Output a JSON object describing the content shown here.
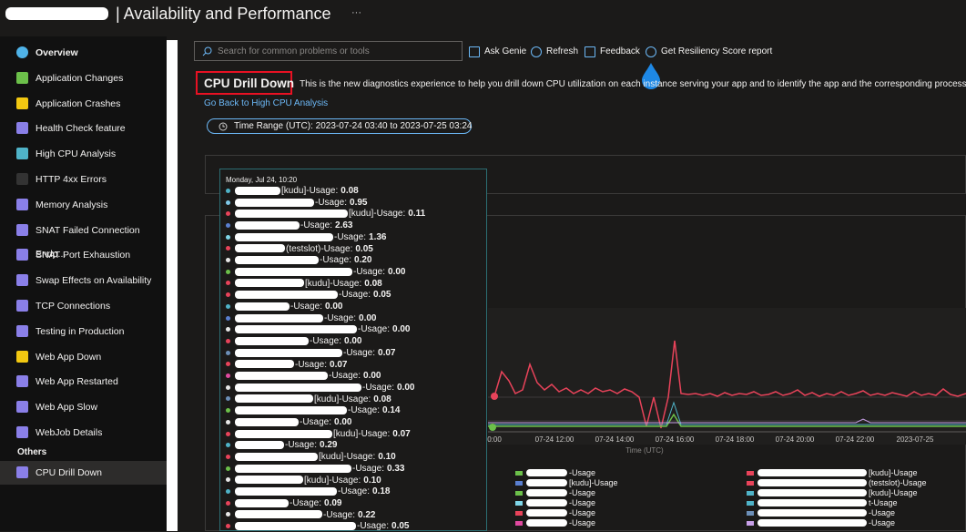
{
  "header": {
    "title": "| Availability and Performance",
    "more": "···"
  },
  "sidebar": {
    "items": [
      "Overview",
      "Application Changes",
      "Application Crashes",
      "Health Check feature",
      "High CPU Analysis",
      "HTTP 4xx Errors",
      "Memory Analysis",
      "SNAT Failed Connection Endp...",
      "SNAT Port Exhaustion",
      "Swap Effects on Availability",
      "TCP Connections",
      "Testing in Production",
      "Web App Down",
      "Web App Restarted",
      "Web App Slow",
      "WebJob Details"
    ],
    "section": "Others",
    "selected": "CPU Drill Down"
  },
  "toolbar": {
    "search_placeholder": "Search for common problems or tools",
    "buttons": [
      "Ask Genie",
      "Refresh",
      "Feedback",
      "Get Resiliency Score report"
    ]
  },
  "content": {
    "title": "CPU Drill Down",
    "description": "This is the new diagnostics experience to help you drill down CPU utilization on each instance serving your app and to identify the app and the corresponding process causi",
    "link": "Go Back to High CPU Analysis",
    "time_range": "Time Range (UTC): 2023-07-24 03:40 to 2023-07-25 03:24"
  },
  "tooltip": {
    "header": "Monday, Jul 24, 10:20",
    "entries": [
      {
        "label": "[kudu]-Usage:",
        "value": "0.08",
        "color": "#4fb3c8"
      },
      {
        "label": "-Usage:",
        "value": "0.95",
        "color": "#7fc8e8"
      },
      {
        "label": "[kudu]-Usage:",
        "value": "0.11",
        "color": "#e8435a"
      },
      {
        "label": "-Usage:",
        "value": "2.63",
        "color": "#5a7fd0"
      },
      {
        "label": "-Usage:",
        "value": "1.36",
        "color": "#7fd6e8"
      },
      {
        "label": "(testslot)-Usage:",
        "value": "0.05",
        "color": "#e8435a"
      },
      {
        "label": "-Usage:",
        "value": "0.20",
        "color": "#e8e8e8"
      },
      {
        "label": "-Usage:",
        "value": "0.00",
        "color": "#6cc04a"
      },
      {
        "label": "[kudu]-Usage:",
        "value": "0.08",
        "color": "#e8435a"
      },
      {
        "label": "-Usage:",
        "value": "0.05",
        "color": "#e8435a"
      },
      {
        "label": "-Usage:",
        "value": "0.00",
        "color": "#4fb3c8"
      },
      {
        "label": "-Usage:",
        "value": "0.00",
        "color": "#5a7fd0"
      },
      {
        "label": "-Usage:",
        "value": "0.00",
        "color": "#e8e8e8"
      },
      {
        "label": "-Usage:",
        "value": "0.00",
        "color": "#e8435a"
      },
      {
        "label": "-Usage:",
        "value": "0.07",
        "color": "#6c8fb8"
      },
      {
        "label": "-Usage:",
        "value": "0.07",
        "color": "#e8435a"
      },
      {
        "label": "-Usage:",
        "value": "0.00",
        "color": "#e04aa0"
      },
      {
        "label": "-Usage:",
        "value": "0.00",
        "color": "#e8e8e8"
      },
      {
        "label": "[kudu]-Usage:",
        "value": "0.08",
        "color": "#6c8fb8"
      },
      {
        "label": "-Usage:",
        "value": "0.14",
        "color": "#6cc04a"
      },
      {
        "label": "-Usage:",
        "value": "0.00",
        "color": "#e8e8e8"
      },
      {
        "label": "[kudu]-Usage:",
        "value": "0.07",
        "color": "#e8435a"
      },
      {
        "label": "-Usage:",
        "value": "0.29",
        "color": "#4fb3c8"
      },
      {
        "label": "[kudu]-Usage:",
        "value": "0.10",
        "color": "#e8435a"
      },
      {
        "label": "-Usage:",
        "value": "0.33",
        "color": "#6cc04a"
      },
      {
        "label": "[kudu]-Usage:",
        "value": "0.10",
        "color": "#e8e8e8"
      },
      {
        "label": "-Usage:",
        "value": "0.18",
        "color": "#4fb3c8"
      },
      {
        "label": "-Usage:",
        "value": "0.09",
        "color": "#e8435a"
      },
      {
        "label": "-Usage:",
        "value": "0.22",
        "color": "#e8e8e8"
      },
      {
        "label": "-Usage:",
        "value": "0.05",
        "color": "#e8435a"
      }
    ]
  },
  "chart": {
    "x_labels": [
      "0:00",
      "07-24 12:00",
      "07-24 14:00",
      "07-24 16:00",
      "07-24 18:00",
      "07-24 20:00",
      "07-24 22:00",
      "2023-07-25"
    ],
    "x_axis_label": "Time (UTC)",
    "legend": [
      {
        "label": "-Usage",
        "color": "#6cc04a"
      },
      {
        "label": "[kudu]-Usage",
        "color": "#e8435a"
      },
      {
        "label": "[kudu]-Usage",
        "color": "#5a7fd0"
      },
      {
        "label": "(testslot)-Usage",
        "color": "#e8435a"
      },
      {
        "label": "-Usage",
        "color": "#6cc04a"
      },
      {
        "label": "[kudu]-Usage",
        "color": "#4fb3c8"
      },
      {
        "label": "-Usage",
        "color": "#7fd6e8"
      },
      {
        "label": "t-Usage",
        "color": "#4fb3c8"
      },
      {
        "label": "-Usage",
        "color": "#e8435a"
      },
      {
        "label": "-Usage",
        "color": "#6c8fb8"
      },
      {
        "label": "-Usage",
        "color": "#e04aa0"
      },
      {
        "label": "-Usage",
        "color": "#c8a0e8"
      }
    ]
  }
}
